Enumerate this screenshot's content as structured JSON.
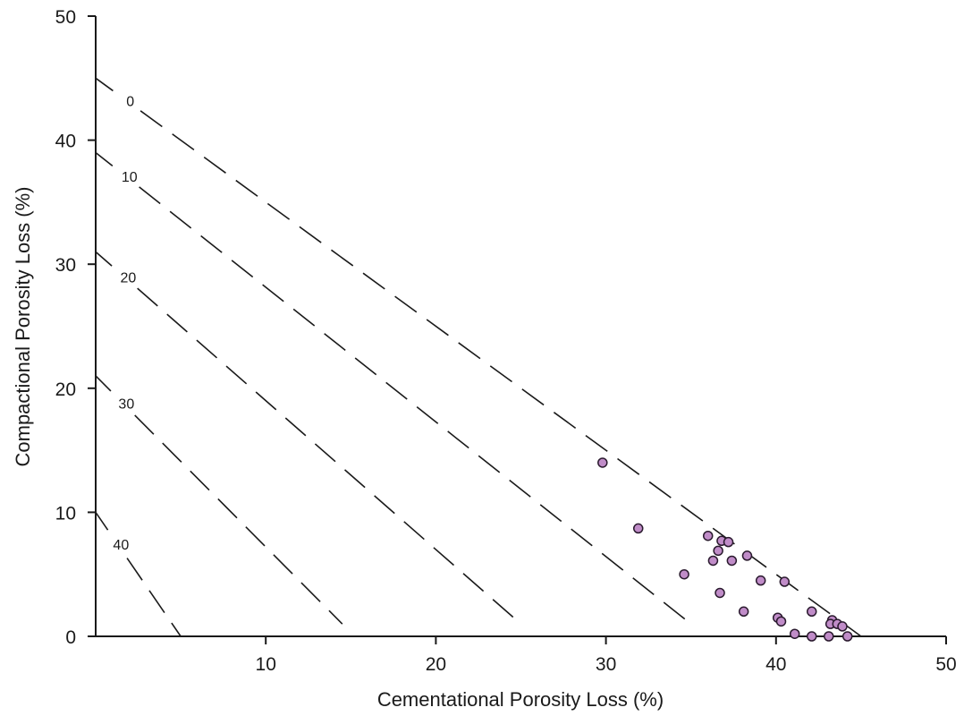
{
  "chart_data": {
    "type": "scatter",
    "title": "",
    "xlabel": "Cementational Porosity Loss (%)",
    "ylabel": "Compactional Porosity Loss (%)",
    "xlim": [
      0,
      50
    ],
    "ylim": [
      0,
      50
    ],
    "x_ticks": [
      10,
      20,
      30,
      40,
      50
    ],
    "y_ticks": [
      0,
      10,
      20,
      30,
      40,
      50
    ],
    "grid": false,
    "reference_lines": [
      {
        "label": "0",
        "style": "dashed",
        "points": [
          [
            0,
            45
          ],
          [
            45,
            0
          ]
        ]
      },
      {
        "label": "10",
        "style": "dashed",
        "points": [
          [
            0,
            39
          ],
          [
            35,
            1
          ]
        ]
      },
      {
        "label": "20",
        "style": "dashed",
        "points": [
          [
            0,
            31
          ],
          [
            25,
            1
          ]
        ]
      },
      {
        "label": "30",
        "style": "dashed",
        "points": [
          [
            0,
            21
          ],
          [
            14.5,
            1
          ]
        ]
      },
      {
        "label": "40",
        "style": "dashed",
        "points": [
          [
            0,
            10
          ],
          [
            5,
            0
          ]
        ]
      }
    ],
    "marker_color": "#c08cc8",
    "marker_edge": "#2a1a2e",
    "points": [
      {
        "x": 29.8,
        "y": 14.0
      },
      {
        "x": 31.9,
        "y": 8.7
      },
      {
        "x": 36.0,
        "y": 8.1
      },
      {
        "x": 36.8,
        "y": 7.7
      },
      {
        "x": 37.2,
        "y": 7.6
      },
      {
        "x": 36.6,
        "y": 6.9
      },
      {
        "x": 36.3,
        "y": 6.1
      },
      {
        "x": 37.4,
        "y": 6.1
      },
      {
        "x": 38.3,
        "y": 6.5
      },
      {
        "x": 34.6,
        "y": 5.0
      },
      {
        "x": 39.1,
        "y": 4.5
      },
      {
        "x": 40.5,
        "y": 4.4
      },
      {
        "x": 36.7,
        "y": 3.5
      },
      {
        "x": 38.1,
        "y": 2.0
      },
      {
        "x": 42.1,
        "y": 2.0
      },
      {
        "x": 40.1,
        "y": 1.5
      },
      {
        "x": 40.3,
        "y": 1.2
      },
      {
        "x": 43.3,
        "y": 1.3
      },
      {
        "x": 43.2,
        "y": 1.0
      },
      {
        "x": 43.6,
        "y": 1.0
      },
      {
        "x": 43.9,
        "y": 0.8
      },
      {
        "x": 41.1,
        "y": 0.2
      },
      {
        "x": 42.1,
        "y": 0.0
      },
      {
        "x": 43.1,
        "y": 0.0
      },
      {
        "x": 44.2,
        "y": 0.0
      }
    ]
  }
}
